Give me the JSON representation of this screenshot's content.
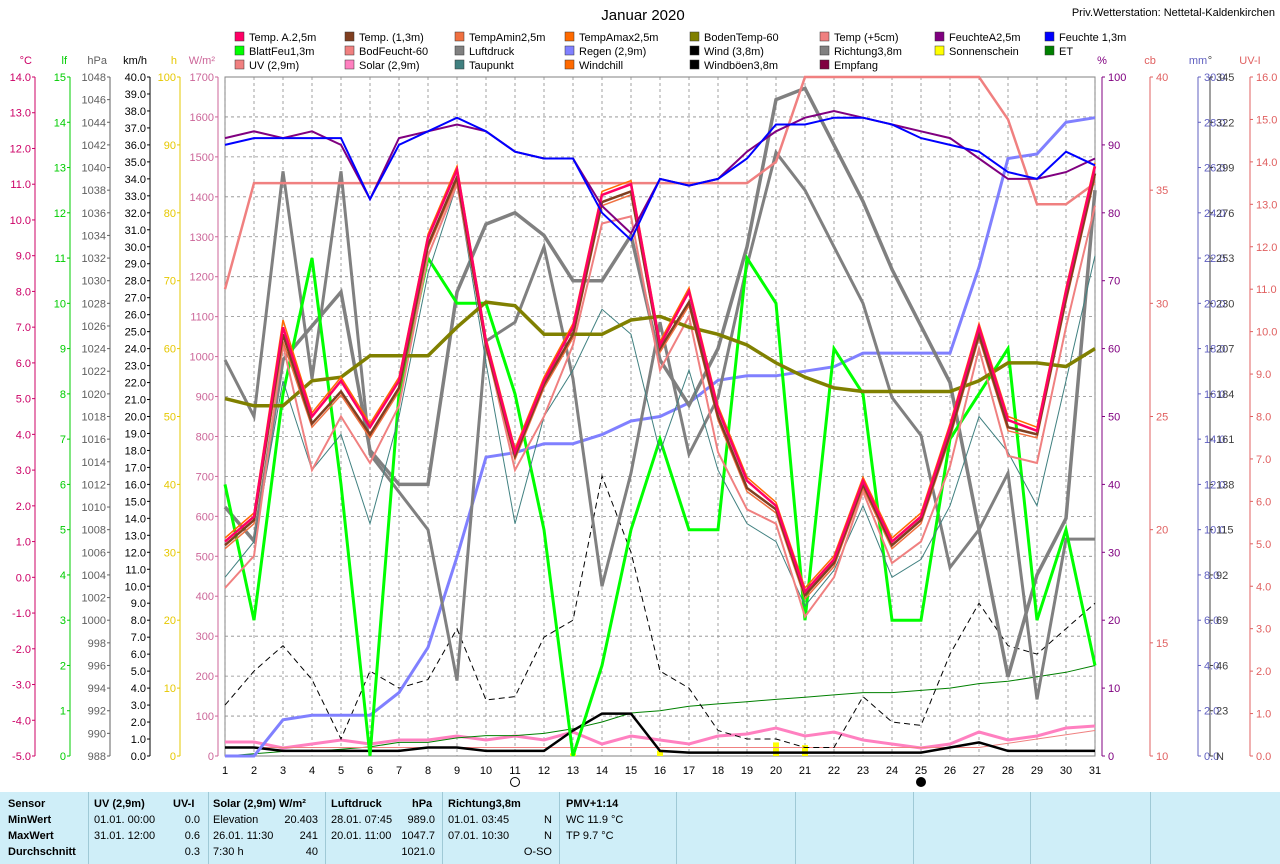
{
  "title": "Januar 2020",
  "station": "Priv.Wetterstation: Nettetal-Kaldenkirchen",
  "legend": [
    {
      "name": "Temp. A.2,5m",
      "color": "#ff0066"
    },
    {
      "name": "Temp. (1,3m)",
      "color": "#803f20"
    },
    {
      "name": "TempAmin2,5m",
      "color": "#f07040"
    },
    {
      "name": "TempAmax2,5m",
      "color": "#ff6a00"
    },
    {
      "name": "BodenTemp-60",
      "color": "#808000"
    },
    {
      "name": "Temp (+5cm)",
      "color": "#f08080"
    },
    {
      "name": "FeuchteA2,5m",
      "color": "#800080"
    },
    {
      "name": "Feuchte 1,3m",
      "color": "#0000ff"
    },
    {
      "name": "BlattFeu1,3m",
      "color": "#00ff00"
    },
    {
      "name": "BodFeucht-60",
      "color": "#f08080"
    },
    {
      "name": "Luftdruck",
      "color": "#808080"
    },
    {
      "name": "Regen (2,9m)",
      "color": "#8080ff"
    },
    {
      "name": "Wind (3,8m)",
      "color": "#000000"
    },
    {
      "name": "Richtung3,8m",
      "color": "#808080"
    },
    {
      "name": "Sonnenschein",
      "color": "#ffff00"
    },
    {
      "name": "ET",
      "color": "#008000"
    },
    {
      "name": "UV (2,9m)",
      "color": "#f08080"
    },
    {
      "name": "Solar (2,9m)",
      "color": "#ff80c0"
    },
    {
      "name": "Taupunkt",
      "color": "#408080"
    },
    {
      "name": "Windchill",
      "color": "#ff6a00"
    },
    {
      "name": "Windböen3,8m",
      "color": "#000000"
    },
    {
      "name": "Empfang",
      "color": "#800040"
    }
  ],
  "axes_left": [
    {
      "unit": "°C",
      "color": "#cc0066",
      "ticks": [
        "14.0",
        "13.0",
        "12.0",
        "11.0",
        "10.0",
        "9.0",
        "8.0",
        "7.0",
        "6.0",
        "5.0",
        "4.0",
        "3.0",
        "2.0",
        "1.0",
        "0.0",
        "-1.0",
        "-2.0",
        "-3.0",
        "-4.0",
        "-5.0"
      ]
    },
    {
      "unit": "lf",
      "color": "#00cc00",
      "ticks": [
        "15",
        "14",
        "13",
        "12",
        "11",
        "10",
        "9",
        "8",
        "7",
        "6",
        "5",
        "4",
        "3",
        "2",
        "1",
        "0"
      ]
    },
    {
      "unit": "hPa",
      "color": "#606060",
      "ticks": [
        "1048",
        "1046",
        "1044",
        "1042",
        "1040",
        "1038",
        "1036",
        "1034",
        "1032",
        "1030",
        "1028",
        "1026",
        "1024",
        "1022",
        "1020",
        "1018",
        "1016",
        "1014",
        "1012",
        "1010",
        "1008",
        "1006",
        "1004",
        "1002",
        "1000",
        "998",
        "996",
        "994",
        "992",
        "990",
        "988"
      ]
    },
    {
      "unit": "km/h",
      "color": "#000000",
      "ticks": [
        "40.0",
        "39.0",
        "38.0",
        "37.0",
        "36.0",
        "35.0",
        "34.0",
        "33.0",
        "32.0",
        "31.0",
        "30.0",
        "29.0",
        "28.0",
        "27.0",
        "26.0",
        "25.0",
        "24.0",
        "23.0",
        "22.0",
        "21.0",
        "20.0",
        "19.0",
        "18.0",
        "17.0",
        "16.0",
        "15.0",
        "14.0",
        "13.0",
        "12.0",
        "11.0",
        "10.0",
        "9.0",
        "8.0",
        "7.0",
        "6.0",
        "5.0",
        "4.0",
        "3.0",
        "2.0",
        "1.0",
        "0.0"
      ]
    },
    {
      "unit": "h",
      "color": "#e6c800",
      "ticks": [
        "100",
        "90",
        "80",
        "70",
        "60",
        "50",
        "40",
        "30",
        "20",
        "10",
        "0"
      ]
    },
    {
      "unit": "W/m²",
      "color": "#cc6699",
      "ticks": [
        "1700",
        "1600",
        "1500",
        "1400",
        "1300",
        "1200",
        "1100",
        "1000",
        "900",
        "800",
        "700",
        "600",
        "500",
        "400",
        "300",
        "200",
        "100",
        "0"
      ]
    }
  ],
  "axes_right": [
    {
      "unit": "%",
      "color": "#800080",
      "ticks": [
        "100",
        "90",
        "80",
        "70",
        "60",
        "50",
        "40",
        "30",
        "20",
        "10",
        "0"
      ]
    },
    {
      "unit": "cb",
      "color": "#e06060",
      "ticks": [
        "40",
        "35",
        "30",
        "25",
        "20",
        "15",
        "10"
      ]
    },
    {
      "unit": "mm",
      "color": "#6060c0",
      "ticks": [
        "30.0",
        "28.0",
        "26.0",
        "24.0",
        "22.0",
        "20.0",
        "18.0",
        "16.0",
        "14.0",
        "12.0",
        "10.0",
        "8.0",
        "6.0",
        "4.0",
        "2.0",
        "0.0"
      ]
    },
    {
      "unit": "°",
      "color": "#404040",
      "ticks": [
        "345",
        "322",
        "299",
        "276",
        "253",
        "230",
        "207",
        "184",
        "161",
        "138",
        "115",
        "92",
        "69",
        "46",
        "23",
        "N"
      ]
    },
    {
      "unit": "UV-I",
      "color": "#e06060",
      "ticks": [
        "16.0",
        "15.0",
        "14.0",
        "13.0",
        "12.0",
        "11.0",
        "10.0",
        "9.0",
        "8.0",
        "7.0",
        "6.0",
        "5.0",
        "4.0",
        "3.0",
        "2.0",
        "1.0",
        "0.0"
      ]
    }
  ],
  "chart_data": {
    "type": "line",
    "title": "Januar 2020",
    "x": [
      1,
      2,
      3,
      4,
      5,
      6,
      7,
      8,
      9,
      10,
      11,
      12,
      13,
      14,
      15,
      16,
      17,
      18,
      19,
      20,
      21,
      22,
      23,
      24,
      25,
      26,
      27,
      28,
      29,
      30,
      31
    ],
    "xlabel": "",
    "series": [
      {
        "name": "Temp. A.2,5m",
        "unit": "°C",
        "color": "#ff0066",
        "values": [
          1.0,
          1.7,
          7.0,
          4.5,
          5.5,
          4.2,
          5.5,
          9.5,
          11.4,
          6.6,
          3.5,
          5.5,
          7.0,
          10.7,
          11.0,
          6.5,
          8.0,
          4.7,
          2.7,
          2.0,
          -0.4,
          0.5,
          2.7,
          1.0,
          1.7,
          4.2,
          7.0,
          4.4,
          4.1,
          8.0,
          11.5
        ]
      },
      {
        "name": "Temp. (1,3m)",
        "unit": "°C",
        "color": "#803f20",
        "values": [
          0.9,
          1.6,
          6.8,
          4.3,
          5.2,
          4.0,
          5.3,
          9.3,
          11.2,
          6.5,
          3.4,
          5.4,
          6.8,
          10.5,
          10.8,
          6.4,
          7.7,
          4.5,
          2.5,
          1.9,
          -0.5,
          0.4,
          2.6,
          0.9,
          1.6,
          4.0,
          6.8,
          4.2,
          4.0,
          7.8,
          11.3
        ]
      },
      {
        "name": "TempAmax2,5m",
        "unit": "°C",
        "color": "#ff6a00",
        "values": [
          1.1,
          1.8,
          7.2,
          4.6,
          5.6,
          4.3,
          5.6,
          9.6,
          11.5,
          6.7,
          3.6,
          5.6,
          7.1,
          10.8,
          11.1,
          6.6,
          8.1,
          4.8,
          2.8,
          2.1,
          -0.3,
          0.6,
          2.8,
          1.1,
          1.8,
          4.3,
          7.1,
          4.5,
          4.2,
          8.1,
          11.6
        ]
      },
      {
        "name": "TempAmin2,5m",
        "unit": "°C",
        "color": "#f07040",
        "values": [
          0.8,
          1.5,
          6.6,
          4.2,
          5.1,
          3.9,
          5.2,
          9.2,
          11.1,
          6.4,
          3.3,
          5.3,
          6.7,
          10.4,
          10.7,
          6.3,
          7.6,
          4.4,
          2.4,
          1.8,
          -0.6,
          0.3,
          2.5,
          0.8,
          1.5,
          3.9,
          6.7,
          4.1,
          3.9,
          7.7,
          11.2
        ]
      },
      {
        "name": "Temp (+5cm)",
        "unit": "°C",
        "color": "#f08080",
        "values": [
          -0.3,
          0.6,
          6.5,
          3.0,
          4.5,
          3.2,
          4.8,
          9.0,
          11.0,
          6.5,
          3.0,
          4.5,
          6.5,
          9.9,
          10.1,
          5.8,
          7.3,
          3.5,
          1.9,
          1.5,
          -1.1,
          0.0,
          2.4,
          0.4,
          1.0,
          3.1,
          6.4,
          3.4,
          3.2,
          7.0,
          10.4
        ]
      },
      {
        "name": "Taupunkt",
        "unit": "°C",
        "color": "#408080",
        "values": [
          0.0,
          1.0,
          5.5,
          3.0,
          4.0,
          1.5,
          4.5,
          8.5,
          11.0,
          6.0,
          1.5,
          4.5,
          5.8,
          7.5,
          6.8,
          3.5,
          5.8,
          3.0,
          1.5,
          1.0,
          -0.8,
          0.2,
          2.0,
          0.0,
          0.5,
          2.0,
          4.5,
          3.5,
          2.0,
          5.5,
          9.0
        ]
      },
      {
        "name": "BodenTemp-60",
        "unit": "°C",
        "color": "#808000",
        "values": [
          5.0,
          4.8,
          4.8,
          5.5,
          5.6,
          6.2,
          6.2,
          6.2,
          7.0,
          7.7,
          7.6,
          6.8,
          6.8,
          6.8,
          7.2,
          7.3,
          7.0,
          6.8,
          6.5,
          6.0,
          5.6,
          5.3,
          5.2,
          5.2,
          5.2,
          5.2,
          5.5,
          6.0,
          6.0,
          5.9,
          6.4
        ]
      },
      {
        "name": "FeuchteA2,5m",
        "unit": "%",
        "color": "#800080",
        "values": [
          91,
          92,
          91,
          92,
          90,
          82,
          91,
          92,
          93,
          92,
          89,
          88,
          88,
          81,
          77,
          85,
          84,
          85,
          89,
          92,
          94,
          95,
          94,
          93,
          92,
          91,
          88,
          85,
          85,
          86,
          88
        ]
      },
      {
        "name": "Feuchte 1,3m",
        "unit": "%",
        "color": "#0000ff",
        "values": [
          90,
          91,
          91,
          91,
          91,
          82,
          90,
          92,
          94,
          92,
          89,
          88,
          88,
          80,
          76,
          85,
          84,
          85,
          88,
          93,
          93,
          94,
          94,
          93,
          91,
          90,
          89,
          86,
          85,
          89,
          87
        ]
      },
      {
        "name": "BlattFeu1,3m",
        "unit": "lf",
        "color": "#00ff00",
        "values": [
          6,
          3,
          8,
          11,
          6,
          0,
          8,
          11,
          10,
          10,
          8,
          5,
          0,
          2,
          5,
          7,
          5,
          5,
          11,
          10,
          3,
          9,
          8,
          3,
          3,
          7,
          8,
          9,
          3,
          5,
          2
        ]
      },
      {
        "name": "BodFeucht-60",
        "unit": "cb",
        "color": "#f08080",
        "values": [
          32,
          37,
          37,
          37,
          37,
          37,
          37,
          37,
          37,
          37,
          37,
          37,
          37,
          37,
          37,
          37,
          37,
          37,
          37,
          38,
          42,
          42,
          42,
          42,
          42,
          42,
          42,
          40,
          36,
          36,
          37
        ]
      },
      {
        "name": "Luftdruck",
        "unit": "hPa",
        "color": "#808080",
        "values": [
          1010,
          1007,
          1023,
          1026,
          1029,
          1015,
          1012,
          1012,
          1029,
          1035,
          1036,
          1034,
          1030,
          1030,
          1034,
          1023,
          1019,
          1024,
          1033,
          1046,
          1047,
          1042,
          1037,
          1031,
          1026,
          1021,
          1008,
          995,
          1004,
          1009,
          1038
        ]
      },
      {
        "name": "Regen (2,9m)",
        "unit": "mm",
        "color": "#8080ff",
        "values": [
          0.0,
          0.0,
          1.6,
          1.8,
          1.8,
          1.8,
          2.8,
          4.8,
          8.8,
          13.2,
          13.4,
          13.8,
          13.8,
          14.2,
          14.8,
          15.0,
          15.6,
          16.6,
          16.8,
          16.8,
          17.0,
          17.2,
          17.8,
          17.8,
          17.8,
          17.8,
          21.6,
          26.4,
          26.6,
          28.0,
          28.2
        ]
      },
      {
        "name": "Wind (3,8m)",
        "unit": "km/h",
        "color": "#000000",
        "values": [
          0.5,
          0.5,
          0.3,
          0.3,
          0.3,
          0.3,
          0.3,
          0.5,
          0.5,
          0.3,
          0.3,
          0.3,
          1.5,
          2.5,
          2.5,
          0.3,
          0.2,
          0.2,
          0.2,
          0.2,
          0.2,
          0.2,
          0.2,
          0.2,
          0.2,
          0.5,
          0.8,
          0.3,
          0.3,
          0.3,
          0.3
        ]
      },
      {
        "name": "Windböen3,8m",
        "unit": "km/h",
        "color": "#000000",
        "values": [
          3.0,
          5.0,
          6.5,
          4.5,
          1.0,
          5.0,
          4.0,
          4.5,
          7.5,
          3.3,
          3.5,
          7.0,
          8.0,
          16.5,
          12.0,
          5.0,
          4.0,
          1.5,
          1.0,
          1.0,
          0.5,
          0.5,
          3.5,
          2.0,
          1.8,
          6.0,
          9.0,
          6.5,
          6.0,
          7.5,
          9.0
        ]
      },
      {
        "name": "Richtung3,8m",
        "unit": "°",
        "color": "#808080",
        "values": [
          210,
          180,
          310,
          200,
          310,
          160,
          140,
          120,
          40,
          220,
          230,
          270,
          200,
          90,
          150,
          230,
          160,
          190,
          260,
          320,
          300,
          270,
          240,
          190,
          170,
          100,
          120,
          150,
          30,
          115,
          115
        ]
      },
      {
        "name": "ET",
        "unit": "mm",
        "color": "#008000",
        "values": [
          0.0,
          0.1,
          0.2,
          0.2,
          0.3,
          0.4,
          0.6,
          0.6,
          0.8,
          0.9,
          0.9,
          1.0,
          1.2,
          1.5,
          1.9,
          2.0,
          2.2,
          2.3,
          2.4,
          2.5,
          2.6,
          2.7,
          2.8,
          2.8,
          2.9,
          3.0,
          3.2,
          3.3,
          3.5,
          3.7,
          4.0
        ]
      },
      {
        "name": "UV (2,9m)",
        "unit": "UV-I",
        "color": "#f08080",
        "values": [
          0.2,
          0.2,
          0.2,
          0.2,
          0.2,
          0.2,
          0.2,
          0.2,
          0.2,
          0.2,
          0.2,
          0.2,
          0.2,
          0.2,
          0.2,
          0.2,
          0.2,
          0.2,
          0.2,
          0.2,
          0.2,
          0.2,
          0.2,
          0.2,
          0.2,
          0.2,
          0.2,
          0.3,
          0.4,
          0.5,
          0.6
        ]
      },
      {
        "name": "Solar (2,9m)",
        "unit": "W/m²",
        "color": "#ff80c0",
        "values": [
          35,
          35,
          20,
          30,
          40,
          30,
          40,
          40,
          50,
          40,
          50,
          40,
          60,
          30,
          50,
          40,
          30,
          50,
          55,
          70,
          50,
          60,
          40,
          30,
          20,
          30,
          60,
          40,
          50,
          70,
          75
        ]
      },
      {
        "name": "Sonnenschein",
        "unit": "h",
        "color": "#ffff00",
        "type": "bar",
        "values": [
          0,
          0,
          0,
          0,
          0,
          0,
          0,
          0,
          0,
          0,
          0,
          0,
          0.4,
          0,
          0,
          0.8,
          0,
          0,
          0,
          2.0,
          1.6,
          0,
          0,
          0,
          0,
          0,
          0,
          0,
          0,
          0,
          0
        ]
      }
    ]
  },
  "stats": {
    "headers": [
      "Sensor",
      "UV (2,9m)",
      "UV-I",
      "Solar (2,9m) W/m²",
      "Luftdruck",
      "hPa",
      "Richtung3,8m",
      "PMV+1:14"
    ],
    "rows": [
      {
        "label": "MinWert",
        "uv_time": "01.01. 00:00",
        "uv": "0.0",
        "solar_text": "Elevation",
        "solar": "20.403",
        "press_time": "28.01. 07:45",
        "press": "989.0",
        "dir_time": "01.01. 03:45",
        "dir": "N",
        "pmv": "WC 11.9 °C"
      },
      {
        "label": "MaxWert",
        "uv_time": "31.01. 12:00",
        "uv": "0.6",
        "solar_text": "26.01. 11:30",
        "solar": "241",
        "press_time": "20.01. 11:00",
        "press": "1047.7",
        "dir_time": "07.01. 10:30",
        "dir": "N",
        "pmv": "TP 9.7 °C"
      },
      {
        "label": "Durchschnitt",
        "uv_time": "",
        "uv": "0.3",
        "solar_text": "7:30 h",
        "solar": "40",
        "press_time": "",
        "press": "1021.0",
        "dir_time": "",
        "dir": "O-SO",
        "pmv": ""
      }
    ]
  }
}
